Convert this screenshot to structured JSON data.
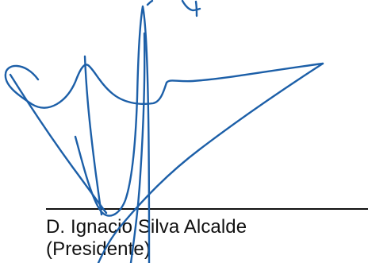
{
  "document": {
    "signer": {
      "name": "D. Ignacio Silva Alcalde",
      "role": "(Presidente)"
    },
    "signature_text": "4",
    "colors": {
      "ink": "#111111",
      "signature": "#1c5fa8",
      "background": "#ffffff"
    }
  }
}
